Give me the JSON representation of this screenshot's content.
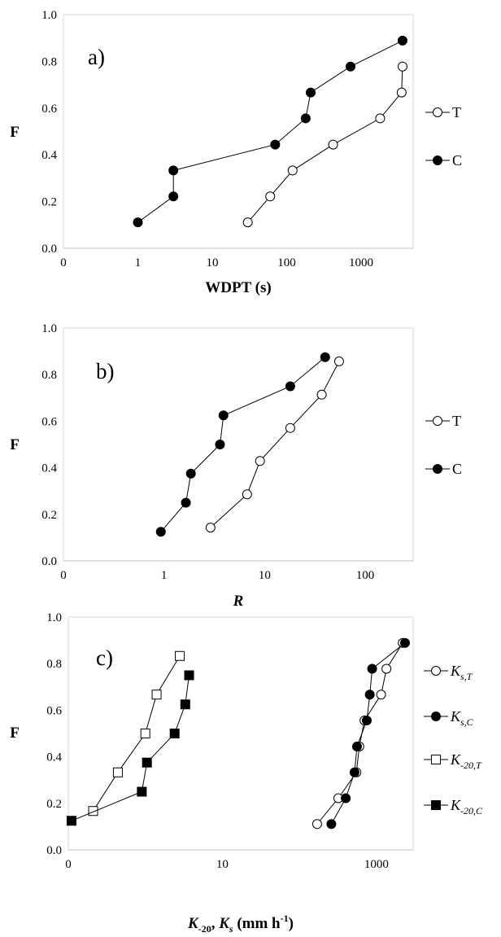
{
  "chart_data": [
    {
      "type": "scatter",
      "panel_label": "a)",
      "xlabel": "WDPT (s)",
      "ylabel": "F",
      "x_scale": "log",
      "x_tick_labels": [
        "0",
        "1",
        "10",
        "100",
        "1000"
      ],
      "y_tick_labels": [
        "0.0",
        "0.2",
        "0.4",
        "0.6",
        "0.8",
        "1.0"
      ],
      "ylim": [
        0,
        1
      ],
      "xlim": [
        0.1,
        5000
      ],
      "legend_position": "right",
      "series": [
        {
          "name": "T",
          "marker": "open-circle",
          "points": [
            [
              30,
              0.111
            ],
            [
              60,
              0.222
            ],
            [
              120,
              0.333
            ],
            [
              420,
              0.444
            ],
            [
              1800,
              0.556
            ],
            [
              3500,
              0.667
            ],
            [
              3600,
              0.778
            ]
          ]
        },
        {
          "name": "C",
          "marker": "filled-circle",
          "points": [
            [
              1,
              0.111
            ],
            [
              3,
              0.222
            ],
            [
              3,
              0.333
            ],
            [
              70,
              0.444
            ],
            [
              180,
              0.556
            ],
            [
              210,
              0.667
            ],
            [
              720,
              0.778
            ],
            [
              3600,
              0.889
            ]
          ]
        }
      ]
    },
    {
      "type": "scatter",
      "panel_label": "b)",
      "xlabel": "R",
      "ylabel": "F",
      "x_scale": "log",
      "x_tick_labels": [
        "0",
        "1",
        "10",
        "100"
      ],
      "y_tick_labels": [
        "0.0",
        "0.2",
        "0.4",
        "0.6",
        "0.8",
        "1.0"
      ],
      "ylim": [
        0,
        1
      ],
      "xlim": [
        0.1,
        300
      ],
      "legend_position": "right",
      "series": [
        {
          "name": "T",
          "marker": "open-circle",
          "points": [
            [
              2.9,
              0.143
            ],
            [
              6.7,
              0.286
            ],
            [
              9,
              0.429
            ],
            [
              18,
              0.571
            ],
            [
              37,
              0.714
            ],
            [
              55,
              0.857
            ]
          ]
        },
        {
          "name": "C",
          "marker": "filled-circle",
          "points": [
            [
              0.93,
              0.125
            ],
            [
              1.65,
              0.25
            ],
            [
              1.85,
              0.375
            ],
            [
              3.6,
              0.5
            ],
            [
              3.9,
              0.625
            ],
            [
              18,
              0.75
            ],
            [
              40,
              0.875
            ]
          ]
        }
      ]
    },
    {
      "type": "scatter",
      "panel_label": "c)",
      "xlabel": "K-20, Ks (mm h-1)",
      "ylabel": "F",
      "x_scale": "log",
      "x_tick_labels": [
        "0",
        "10",
        "1000"
      ],
      "y_tick_labels": [
        "0.0",
        "0.2",
        "0.4",
        "0.6",
        "0.8",
        "1.0"
      ],
      "ylim": [
        0,
        1
      ],
      "xlim": [
        0.1,
        3000
      ],
      "legend_position": "right",
      "series": [
        {
          "name": "Ks,T",
          "marker": "open-circle",
          "points": [
            [
              170,
              0.111
            ],
            [
              320,
              0.222
            ],
            [
              550,
              0.333
            ],
            [
              600,
              0.444
            ],
            [
              700,
              0.556
            ],
            [
              1150,
              0.667
            ],
            [
              1350,
              0.778
            ],
            [
              2200,
              0.889
            ]
          ]
        },
        {
          "name": "Ks,C",
          "marker": "filled-circle",
          "points": [
            [
              260,
              0.111
            ],
            [
              400,
              0.222
            ],
            [
              520,
              0.333
            ],
            [
              560,
              0.444
            ],
            [
              750,
              0.556
            ],
            [
              820,
              0.667
            ],
            [
              880,
              0.778
            ],
            [
              2350,
              0.889
            ]
          ]
        },
        {
          "name": "K-20,T",
          "marker": "open-square",
          "points": [
            [
              0.21,
              0.167
            ],
            [
              0.44,
              0.333
            ],
            [
              1.0,
              0.5
            ],
            [
              1.4,
              0.667
            ],
            [
              2.8,
              0.833
            ]
          ]
        },
        {
          "name": "K-20,C",
          "marker": "filled-square",
          "points": [
            [
              0.11,
              0.125
            ],
            [
              0.9,
              0.25
            ],
            [
              1.05,
              0.375
            ],
            [
              2.4,
              0.5
            ],
            [
              3.3,
              0.625
            ],
            [
              3.7,
              0.75
            ]
          ]
        }
      ]
    }
  ],
  "legends": {
    "a": [
      {
        "text": "T"
      },
      {
        "text": "C"
      }
    ],
    "b": [
      {
        "text": "T"
      },
      {
        "text": "C"
      }
    ],
    "c": [
      {
        "main": "K",
        "sub": "s,T"
      },
      {
        "main": "K",
        "sub": "s,C"
      },
      {
        "main": "K",
        "sub": "-20,T"
      },
      {
        "main": "K",
        "sub": "-20,C"
      }
    ]
  },
  "axis_titles": {
    "a_x": "WDPT (s)",
    "b_x": "R",
    "c_x": {
      "p1": "K",
      "s1": "-20",
      "p2": ", ",
      "p3": "K",
      "s2": "s",
      "p4": " (mm h",
      "sup": "-1",
      "p5": ")"
    },
    "y": "F"
  }
}
